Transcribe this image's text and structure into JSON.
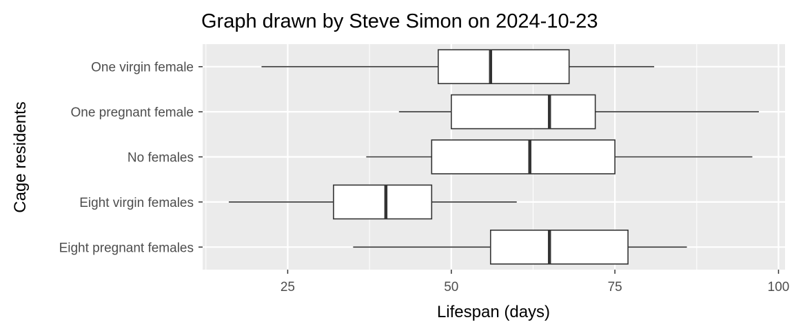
{
  "chart_data": {
    "type": "boxplot",
    "orientation": "horizontal",
    "title": "Graph drawn by Steve Simon on 2024-10-23",
    "xlabel": "Lifespan (days)",
    "ylabel": "Cage residents",
    "xlim": [
      12,
      101
    ],
    "xticks": [
      25,
      50,
      75,
      100
    ],
    "grid": true,
    "categories": [
      "One virgin female",
      "One pregnant female",
      "No females",
      "Eight virgin females",
      "Eight pregnant females"
    ],
    "boxes": [
      {
        "category": "One virgin female",
        "whisker_low": 21,
        "q1": 48,
        "median": 56,
        "q3": 68,
        "whisker_high": 81
      },
      {
        "category": "One pregnant female",
        "whisker_low": 42,
        "q1": 50,
        "median": 65,
        "q3": 72,
        "whisker_high": 97
      },
      {
        "category": "No females",
        "whisker_low": 37,
        "q1": 47,
        "median": 62,
        "q3": 75,
        "whisker_high": 96
      },
      {
        "category": "Eight virgin females",
        "whisker_low": 16,
        "q1": 32,
        "median": 40,
        "q3": 47,
        "whisker_high": 60
      },
      {
        "category": "Eight pregnant females",
        "whisker_low": 35,
        "q1": 56,
        "median": 65,
        "q3": 77,
        "whisker_high": 86
      }
    ],
    "colors": {
      "panel": "#ebebeb",
      "grid": "#ffffff",
      "box_fill": "#ffffff",
      "box_stroke": "#333333",
      "tick_label": "#4d4d4d"
    }
  }
}
